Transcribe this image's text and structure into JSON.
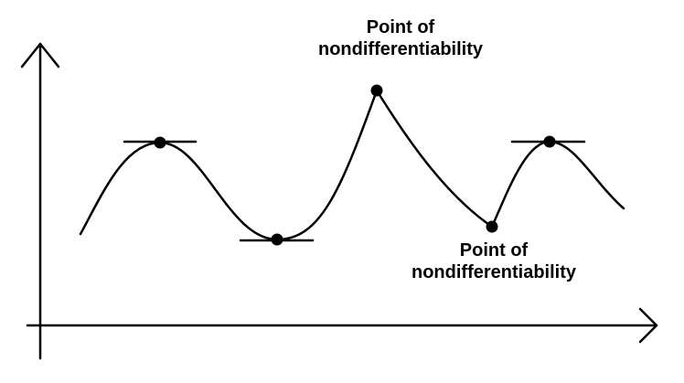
{
  "diagram": {
    "annotations": {
      "top": {
        "line1": "Point of",
        "line2": "nondifferentiability"
      },
      "bottom": {
        "line1": "Point of",
        "line2": "nondifferentiability"
      }
    },
    "colors": {
      "stroke": "#000000",
      "background": "#ffffff"
    },
    "marked_points": [
      {
        "kind": "local maximum",
        "tangent": "horizontal"
      },
      {
        "kind": "local minimum",
        "tangent": "horizontal"
      },
      {
        "kind": "cusp (nondifferentiable)"
      },
      {
        "kind": "corner (nondifferentiable)"
      },
      {
        "kind": "local maximum",
        "tangent": "horizontal"
      }
    ]
  }
}
